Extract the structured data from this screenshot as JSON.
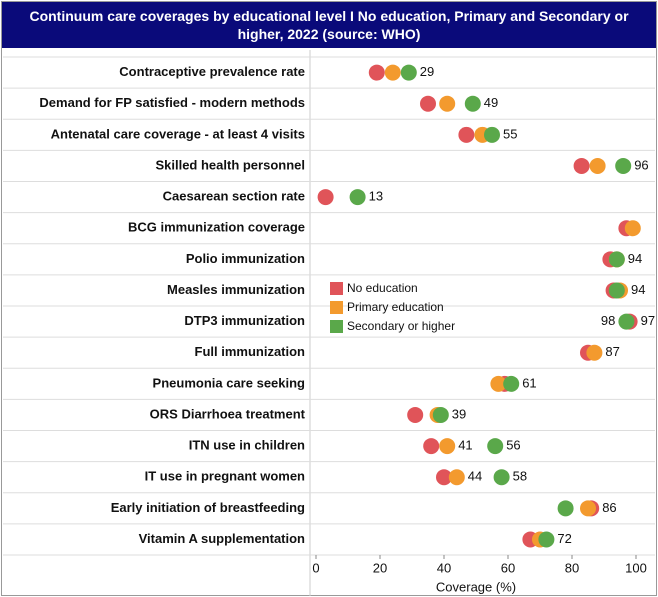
{
  "chart_data": {
    "type": "dot",
    "title": "Continuum care coverages by educational level  I No education, Primary and Secondary or higher, 2022 (source: WHO)",
    "categories": [
      "Contraceptive prevalence rate",
      "Demand for FP satisfied - modern methods",
      "Antenatal care coverage - at least 4 visits",
      "Skilled health personnel",
      "Caesarean section rate",
      "BCG immunization coverage",
      "Polio immunization",
      "Measles immunization",
      "DTP3 immunization",
      "Full immunization",
      "Pneumonia care seeking",
      "ORS Diarrhoea treatment",
      "ITN use in children",
      "IT use in pregnant women",
      "Early initiation of breastfeeding",
      "Vitamin A supplementation"
    ],
    "series": [
      {
        "name": "No education",
        "color": "#e05459",
        "values": [
          19,
          35,
          47,
          83,
          3,
          97,
          92,
          93,
          98,
          85,
          59,
          31,
          36,
          40,
          86,
          67
        ],
        "value_labels": [
          null,
          null,
          null,
          null,
          null,
          null,
          null,
          null,
          "98",
          null,
          null,
          null,
          null,
          null,
          "86",
          null
        ]
      },
      {
        "name": "Primary education",
        "color": "#f39a2e",
        "values": [
          24,
          41,
          52,
          88,
          null,
          99,
          94,
          95,
          null,
          87,
          57,
          38,
          41,
          44,
          85,
          70
        ],
        "value_labels": [
          null,
          null,
          null,
          null,
          null,
          null,
          null,
          null,
          null,
          "87",
          null,
          null,
          "41",
          "44",
          null,
          null
        ]
      },
      {
        "name": "Secondary or higher",
        "color": "#5aa84a",
        "values": [
          29,
          49,
          55,
          96,
          13,
          null,
          94,
          94,
          97,
          null,
          61,
          39,
          56,
          58,
          78,
          72
        ],
        "value_labels": [
          "29",
          "49",
          "55",
          "96",
          "13",
          null,
          "94",
          "94",
          "97",
          null,
          "61",
          "39",
          "56",
          "58",
          null,
          "72"
        ]
      }
    ],
    "xlim": [
      0,
      105
    ],
    "xticks": [
      0,
      20,
      40,
      60,
      80,
      100
    ],
    "xlabel": "Coverage (%)"
  }
}
